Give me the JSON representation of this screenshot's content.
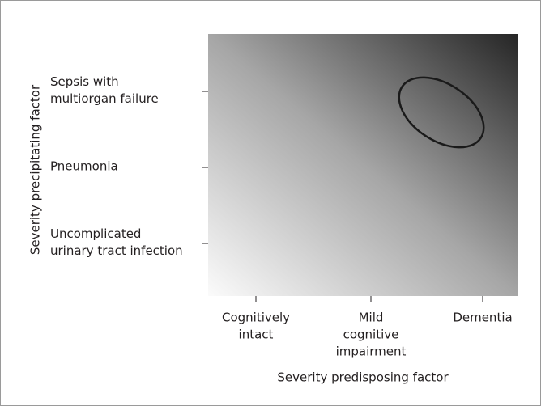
{
  "diagram": {
    "y_axis": {
      "title": "Severity precipitating factor",
      "ticks": [
        {
          "lines": [
            "Sepsis with",
            "multiorgan failure"
          ]
        },
        {
          "lines": [
            "Pneumonia"
          ]
        },
        {
          "lines": [
            "Uncomplicated",
            "urinary tract infection"
          ]
        }
      ]
    },
    "x_axis": {
      "title": "Severity predisposing factor",
      "ticks": [
        {
          "lines": [
            "Cognitively",
            "intact"
          ]
        },
        {
          "lines": [
            "Mild",
            "cognitive",
            "impairment"
          ]
        },
        {
          "lines": [
            "Dementia"
          ]
        }
      ]
    }
  }
}
